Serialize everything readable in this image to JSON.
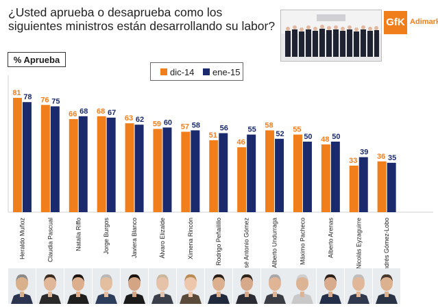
{
  "title": "¿Usted aprueba o desaprueba como los siguientes ministros están desarrollando su labor?",
  "subtitle": "% Aprueba",
  "logo": {
    "brand": "GfK",
    "name": "Adimark"
  },
  "colors": {
    "dic14": "#f07e1b",
    "ene15": "#1a2a6c"
  },
  "chart_data": {
    "type": "bar",
    "categories": [
      "Heraldo Muñoz",
      "Claudia Pascual",
      "Natalia Riffo",
      "Jorge Burgos",
      "Javiera Blanco",
      "Álvaro Elizalde",
      "Ximena Rincón",
      "Rodrigo Peñailillo",
      "José Antonio Gómez",
      "Alberto Undurraga",
      "Máximo Pacheco",
      "Alberto Arenas",
      "Nicolás Eyzaguirre",
      "Andrés Gómez-Lobo"
    ],
    "series": [
      {
        "name": "dic-14",
        "values": [
          81,
          76,
          66,
          68,
          63,
          59,
          57,
          51,
          46,
          58,
          55,
          48,
          33,
          36
        ]
      },
      {
        "name": "ene-15",
        "values": [
          78,
          75,
          68,
          67,
          62,
          60,
          58,
          56,
          55,
          52,
          50,
          50,
          39,
          35
        ]
      }
    ],
    "ylim": [
      0,
      81
    ]
  }
}
